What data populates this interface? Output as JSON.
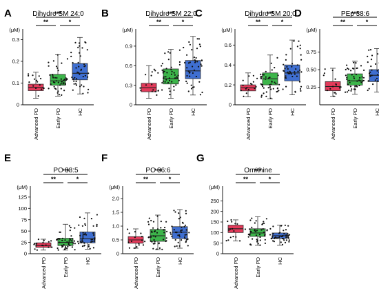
{
  "figure": {
    "group_labels": [
      "Advanced PD",
      "Early PD",
      "HC"
    ],
    "group_colors": [
      "#e23a5a",
      "#3cb54a",
      "#3f6fd1"
    ],
    "unit": "(μM)",
    "significance": [
      {
        "pair": "Advanced PD vs Early PD",
        "label": "**"
      },
      {
        "pair": "Early PD vs HC",
        "label": "*"
      },
      {
        "pair": "Advanced PD vs HC",
        "label": "***"
      }
    ]
  },
  "chart_data": [
    {
      "panel": "A",
      "type": "box",
      "title": "Dihydro SM 24:0",
      "ylabel": "(μM)",
      "ylim": [
        0,
        0.33
      ],
      "ticks": [
        0,
        0.1,
        0.2,
        0.3
      ],
      "tick_labels": [
        "0",
        "0.1",
        "0.2",
        "0.3"
      ],
      "categories": [
        "Advanced PD",
        "Early PD",
        "HC"
      ],
      "boxes": [
        {
          "min": 0.03,
          "q1": 0.065,
          "median": 0.08,
          "q3": 0.095,
          "max": 0.15
        },
        {
          "min": 0.04,
          "q1": 0.09,
          "median": 0.11,
          "q3": 0.14,
          "max": 0.23
        },
        {
          "min": 0.05,
          "q1": 0.115,
          "median": 0.145,
          "q3": 0.19,
          "max": 0.31
        }
      ],
      "significance": [
        "**",
        "*",
        "***"
      ]
    },
    {
      "panel": "B",
      "type": "box",
      "title": "Dihydro SM 22:0",
      "ylabel": "(μM)",
      "ylim": [
        0,
        1.1
      ],
      "ticks": [
        0,
        0.3,
        0.6,
        0.9
      ],
      "tick_labels": [
        "0",
        "0.3",
        "0.6",
        "0.9"
      ],
      "categories": [
        "Advanced PD",
        "Early PD",
        "HC"
      ],
      "boxes": [
        {
          "min": 0.1,
          "q1": 0.2,
          "median": 0.26,
          "q3": 0.33,
          "max": 0.6
        },
        {
          "min": 0.1,
          "q1": 0.32,
          "median": 0.4,
          "q3": 0.55,
          "max": 0.85
        },
        {
          "min": 0.15,
          "q1": 0.4,
          "median": 0.52,
          "q3": 0.68,
          "max": 1.05
        }
      ],
      "significance": [
        "**",
        "*",
        "***"
      ]
    },
    {
      "panel": "C",
      "type": "box",
      "title": "Dihydro SM 20:0",
      "ylabel": "(μM)",
      "ylim": [
        0,
        0.72
      ],
      "ticks": [
        0,
        0.2,
        0.4,
        0.6
      ],
      "tick_labels": [
        "0",
        "0.2",
        "0.4",
        "0.6"
      ],
      "categories": [
        "Advanced PD",
        "Early PD",
        "HC"
      ],
      "boxes": [
        {
          "min": 0.08,
          "q1": 0.14,
          "median": 0.17,
          "q3": 0.2,
          "max": 0.32
        },
        {
          "min": 0.06,
          "q1": 0.2,
          "median": 0.26,
          "q3": 0.32,
          "max": 0.5
        },
        {
          "min": 0.1,
          "q1": 0.24,
          "median": 0.32,
          "q3": 0.4,
          "max": 0.65
        }
      ],
      "significance": [
        "**",
        "*",
        "***"
      ]
    },
    {
      "panel": "D",
      "type": "box",
      "title": "PEp 38:6",
      "ylabel": "(μM)",
      "ylim": [
        0,
        1.02
      ],
      "ticks": [
        0.25,
        0.5,
        0.75
      ],
      "tick_labels": [
        "0.25",
        "0.50",
        "0.75"
      ],
      "categories": [
        "Advanced PD",
        "Early PD",
        "HC"
      ],
      "boxes": [
        {
          "min": 0.12,
          "q1": 0.2,
          "median": 0.26,
          "q3": 0.33,
          "max": 0.52
        },
        {
          "min": 0.15,
          "q1": 0.28,
          "median": 0.34,
          "q3": 0.44,
          "max": 0.62
        },
        {
          "min": 0.18,
          "q1": 0.33,
          "median": 0.42,
          "q3": 0.5,
          "max": 0.8
        }
      ],
      "significance": [
        "**",
        "*",
        "***"
      ]
    },
    {
      "panel": "E",
      "type": "box",
      "title": "PC 38:5",
      "ylabel": "(μM)",
      "ylim": [
        0,
        140
      ],
      "ticks": [
        0,
        25,
        50,
        75,
        100,
        125
      ],
      "tick_labels": [
        "0",
        "25",
        "50",
        "75",
        "100",
        "125"
      ],
      "categories": [
        "Advanced PD",
        "Early PD",
        "HC"
      ],
      "boxes": [
        {
          "min": 8,
          "q1": 14,
          "median": 18,
          "q3": 24,
          "max": 32
        },
        {
          "min": 8,
          "q1": 18,
          "median": 25,
          "q3": 34,
          "max": 65
        },
        {
          "min": 10,
          "q1": 24,
          "median": 33,
          "q3": 48,
          "max": 90
        }
      ],
      "significance": [
        "**",
        "*",
        "***"
      ]
    },
    {
      "panel": "F",
      "type": "box",
      "title": "PC 36:6",
      "ylabel": "(μM)",
      "ylim": [
        0,
        2.3
      ],
      "ticks": [
        0,
        0.5,
        1.0,
        1.5,
        2.0
      ],
      "tick_labels": [
        "0",
        "0.5",
        "1.0",
        "1.5",
        "2.0"
      ],
      "categories": [
        "Advanced PD",
        "Early PD",
        "HC"
      ],
      "boxes": [
        {
          "min": 0.2,
          "q1": 0.38,
          "median": 0.5,
          "q3": 0.62,
          "max": 0.9
        },
        {
          "min": 0.15,
          "q1": 0.45,
          "median": 0.65,
          "q3": 0.88,
          "max": 1.4
        },
        {
          "min": 0.2,
          "q1": 0.55,
          "median": 0.78,
          "q3": 0.98,
          "max": 1.6
        }
      ],
      "significance": [
        "**",
        "*",
        "***"
      ]
    },
    {
      "panel": "G",
      "type": "box",
      "title": "Ornithine",
      "ylabel": "(μM)",
      "ylim": [
        0,
        300
      ],
      "ticks": [
        0,
        50,
        100,
        150,
        200,
        250
      ],
      "tick_labels": [
        "0",
        "50",
        "100",
        "150",
        "200",
        "250"
      ],
      "categories": [
        "Advanced PD",
        "Early PD",
        "HC"
      ],
      "boxes": [
        {
          "min": 60,
          "q1": 100,
          "median": 118,
          "q3": 135,
          "max": 160
        },
        {
          "min": 40,
          "q1": 82,
          "median": 98,
          "q3": 118,
          "max": 175
        },
        {
          "min": 40,
          "q1": 72,
          "median": 85,
          "q3": 98,
          "max": 135
        }
      ],
      "significance": [
        "**",
        "*",
        "***"
      ]
    }
  ]
}
